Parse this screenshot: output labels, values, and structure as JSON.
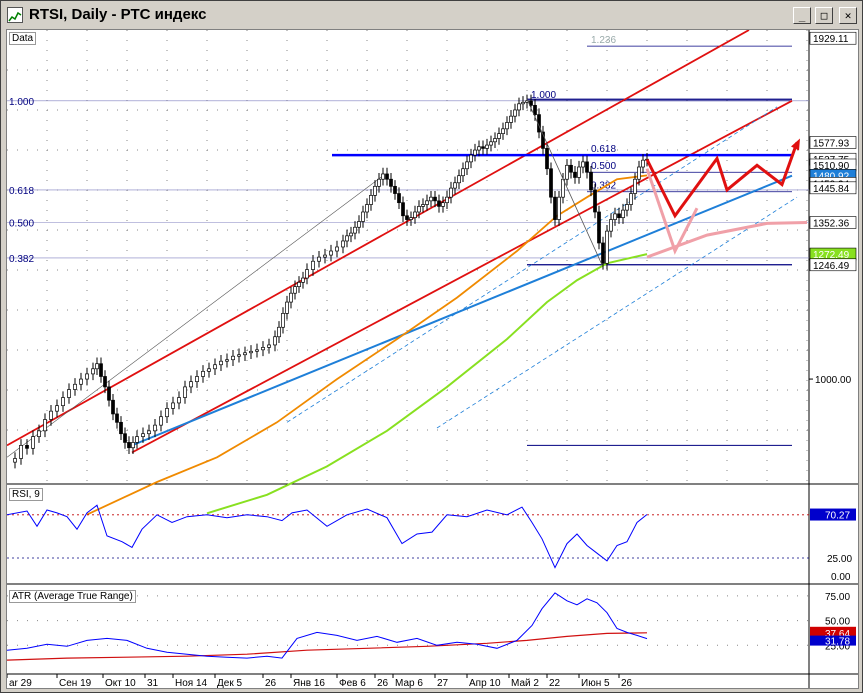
{
  "window": {
    "title": "RTSI, Daily - РТС индекс",
    "controls": {
      "minimize": "_",
      "maximize": "□",
      "close": "✕"
    }
  },
  "colors": {
    "channel": "#e01010",
    "horizontal": "#0000ff",
    "trend": "#1e7fd8",
    "ma_fast": "#f08a00",
    "ma_slow": "#88e020",
    "rsi": "#0000ff",
    "atr": "#0000ff",
    "atr_avg": "#d01010",
    "fib": "#000080",
    "forecast_red": "#e01010",
    "forecast_pink": "#f0a0a8"
  },
  "panes": {
    "main_label": "Data",
    "rsi_label": "RSI, 9",
    "atr_label": "ATR (Average True Range)"
  },
  "chart_data": [
    {
      "type": "candlestick",
      "symbol": "RTSI",
      "timeframe": "Daily",
      "scale": "log",
      "price_axis_ticks": [
        "1000.00"
      ],
      "price_badges": [
        {
          "label": "1929.11",
          "price": 1929.11
        },
        {
          "label": "1577.93",
          "price": 1577.93
        },
        {
          "label": "1527.75",
          "price": 1527.75
        },
        {
          "label": "1510.90",
          "price": 1510.9
        },
        {
          "label": "1480.92",
          "price": 1480.92
        },
        {
          "label": "1458.24",
          "price": 1458.24
        },
        {
          "label": "1445.84",
          "price": 1445.84
        },
        {
          "label": "1352.36",
          "price": 1352.36
        },
        {
          "label": "1272.49",
          "price": 1272.49
        },
        {
          "label": "1246.49",
          "price": 1246.49
        }
      ],
      "fib_left": [
        {
          "label": "1.000",
          "price": 1710
        },
        {
          "label": "0.618",
          "price": 1440
        },
        {
          "label": "0.500",
          "price": 1352.36
        },
        {
          "label": "0.382",
          "price": 1263
        }
      ],
      "fib_right": [
        {
          "label": "1.236",
          "price": 1900
        },
        {
          "label": "1.000",
          "price": 1710
        },
        {
          "label": "0.618",
          "price": 1540
        },
        {
          "label": "0.500",
          "price": 1490
        },
        {
          "label": "0.382",
          "price": 1435
        }
      ],
      "close_path": [
        [
          0,
          852
        ],
        [
          8,
          858
        ],
        [
          14,
          880
        ],
        [
          20,
          875
        ],
        [
          26,
          895
        ],
        [
          32,
          905
        ],
        [
          38,
          925
        ],
        [
          44,
          940
        ],
        [
          50,
          950
        ],
        [
          56,
          965
        ],
        [
          62,
          980
        ],
        [
          68,
          990
        ],
        [
          74,
          1000
        ],
        [
          80,
          1010
        ],
        [
          86,
          1020
        ],
        [
          90,
          1030
        ],
        [
          94,
          1005
        ],
        [
          98,
          985
        ],
        [
          102,
          960
        ],
        [
          106,
          935
        ],
        [
          110,
          920
        ],
        [
          114,
          900
        ],
        [
          118,
          885
        ],
        [
          122,
          876
        ],
        [
          126,
          885
        ],
        [
          130,
          895
        ],
        [
          136,
          900
        ],
        [
          142,
          905
        ],
        [
          148,
          915
        ],
        [
          154,
          930
        ],
        [
          160,
          945
        ],
        [
          166,
          955
        ],
        [
          172,
          965
        ],
        [
          178,
          985
        ],
        [
          184,
          995
        ],
        [
          190,
          1005
        ],
        [
          196,
          1015
        ],
        [
          202,
          1020
        ],
        [
          208,
          1028
        ],
        [
          214,
          1035
        ],
        [
          220,
          1038
        ],
        [
          226,
          1045
        ],
        [
          232,
          1048
        ],
        [
          238,
          1052
        ],
        [
          244,
          1055
        ],
        [
          250,
          1058
        ],
        [
          256,
          1063
        ],
        [
          262,
          1068
        ],
        [
          268,
          1085
        ],
        [
          272,
          1105
        ],
        [
          276,
          1135
        ],
        [
          280,
          1160
        ],
        [
          284,
          1180
        ],
        [
          288,
          1195
        ],
        [
          292,
          1205
        ],
        [
          296,
          1215
        ],
        [
          300,
          1235
        ],
        [
          306,
          1255
        ],
        [
          312,
          1265
        ],
        [
          318,
          1270
        ],
        [
          324,
          1280
        ],
        [
          330,
          1290
        ],
        [
          336,
          1305
        ],
        [
          340,
          1318
        ],
        [
          344,
          1325
        ],
        [
          348,
          1340
        ],
        [
          352,
          1355
        ],
        [
          356,
          1380
        ],
        [
          360,
          1400
        ],
        [
          364,
          1425
        ],
        [
          368,
          1450
        ],
        [
          372,
          1470
        ],
        [
          376,
          1485
        ],
        [
          380,
          1470
        ],
        [
          384,
          1450
        ],
        [
          388,
          1430
        ],
        [
          392,
          1405
        ],
        [
          396,
          1370
        ],
        [
          400,
          1360
        ],
        [
          404,
          1365
        ],
        [
          408,
          1380
        ],
        [
          412,
          1395
        ],
        [
          416,
          1400
        ],
        [
          420,
          1410
        ],
        [
          424,
          1420
        ],
        [
          428,
          1410
        ],
        [
          432,
          1395
        ],
        [
          436,
          1405
        ],
        [
          440,
          1420
        ],
        [
          444,
          1445
        ],
        [
          448,
          1460
        ],
        [
          452,
          1480
        ],
        [
          456,
          1500
        ],
        [
          460,
          1520
        ],
        [
          464,
          1540
        ],
        [
          468,
          1555
        ],
        [
          472,
          1565
        ],
        [
          476,
          1560
        ],
        [
          480,
          1570
        ],
        [
          484,
          1580
        ],
        [
          488,
          1590
        ],
        [
          492,
          1605
        ],
        [
          496,
          1620
        ],
        [
          500,
          1640
        ],
        [
          504,
          1660
        ],
        [
          508,
          1680
        ],
        [
          512,
          1700
        ],
        [
          516,
          1705
        ],
        [
          520,
          1710
        ],
        [
          524,
          1695
        ],
        [
          528,
          1665
        ],
        [
          532,
          1610
        ],
        [
          536,
          1560
        ],
        [
          540,
          1500
        ],
        [
          544,
          1420
        ],
        [
          548,
          1360
        ],
        [
          552,
          1420
        ],
        [
          556,
          1470
        ],
        [
          560,
          1510
        ],
        [
          564,
          1490
        ],
        [
          568,
          1475
        ],
        [
          572,
          1505
        ],
        [
          576,
          1520
        ],
        [
          580,
          1490
        ],
        [
          584,
          1440
        ],
        [
          588,
          1380
        ],
        [
          592,
          1300
        ],
        [
          596,
          1250
        ],
        [
          600,
          1330
        ],
        [
          604,
          1360
        ],
        [
          608,
          1375
        ],
        [
          612,
          1365
        ],
        [
          616,
          1385
        ],
        [
          620,
          1400
        ],
        [
          624,
          1430
        ],
        [
          628,
          1470
        ],
        [
          632,
          1505
        ],
        [
          636,
          1525
        ],
        [
          640,
          1527.75
        ]
      ],
      "series": [
        {
          "name": "MA fast",
          "points": [
            [
              80,
              770
            ],
            [
              150,
              820
            ],
            [
              210,
              860
            ],
            [
              270,
              920
            ],
            [
              330,
              1000
            ],
            [
              390,
              1080
            ],
            [
              450,
              1170
            ],
            [
              510,
              1280
            ],
            [
              550,
              1370
            ],
            [
              580,
              1420
            ],
            [
              610,
              1470
            ],
            [
              640,
              1480.92
            ]
          ]
        },
        {
          "name": "MA slow",
          "points": [
            [
              200,
              772
            ],
            [
              260,
              800
            ],
            [
              320,
              845
            ],
            [
              380,
              905
            ],
            [
              440,
              985
            ],
            [
              500,
              1080
            ],
            [
              540,
              1160
            ],
            [
              570,
              1210
            ],
            [
              600,
              1250
            ],
            [
              640,
              1272.49
            ]
          ]
        }
      ],
      "forecast_red": [
        [
          640,
          1527
        ],
        [
          668,
          1370
        ],
        [
          710,
          1530
        ],
        [
          720,
          1440
        ],
        [
          750,
          1510
        ],
        [
          775,
          1455
        ],
        [
          790,
          1577.93
        ]
      ],
      "forecast_pink": [
        [
          640,
          1500
        ],
        [
          668,
          1280
        ],
        [
          690,
          1390
        ]
      ],
      "forecast_pink_curve": [
        [
          640,
          1265
        ],
        [
          700,
          1320
        ],
        [
          760,
          1350
        ],
        [
          800,
          1352.36
        ]
      ],
      "x_ticks": [
        "ar 29",
        "Сен 19",
        "Окт 10",
        "31",
        "Ноя 14",
        "Дек 5",
        "26",
        "Янв 16",
        "Фев 6",
        "26",
        "Мар 6",
        "27",
        "Апр 10",
        "Май 2",
        "22",
        "Июн 5",
        "26"
      ]
    },
    {
      "type": "line",
      "name": "RSI, 9",
      "ylim": [
        0,
        100
      ],
      "levels": [
        70,
        25
      ],
      "tick_labels": [
        "25.00",
        "0.00"
      ],
      "last_label": "70.27",
      "values": [
        [
          0,
          70
        ],
        [
          20,
          74
        ],
        [
          30,
          58
        ],
        [
          40,
          75
        ],
        [
          50,
          72
        ],
        [
          60,
          68
        ],
        [
          70,
          55
        ],
        [
          80,
          72
        ],
        [
          90,
          80
        ],
        [
          100,
          48
        ],
        [
          115,
          42
        ],
        [
          125,
          36
        ],
        [
          135,
          55
        ],
        [
          150,
          70
        ],
        [
          165,
          62
        ],
        [
          180,
          68
        ],
        [
          200,
          70
        ],
        [
          220,
          67
        ],
        [
          240,
          70
        ],
        [
          260,
          68
        ],
        [
          275,
          64
        ],
        [
          285,
          72
        ],
        [
          300,
          75
        ],
        [
          320,
          58
        ],
        [
          340,
          70
        ],
        [
          360,
          76
        ],
        [
          380,
          67
        ],
        [
          395,
          40
        ],
        [
          410,
          50
        ],
        [
          425,
          52
        ],
        [
          440,
          70
        ],
        [
          460,
          68
        ],
        [
          480,
          75
        ],
        [
          500,
          70
        ],
        [
          515,
          78
        ],
        [
          525,
          62
        ],
        [
          535,
          45
        ],
        [
          548,
          15
        ],
        [
          560,
          40
        ],
        [
          570,
          50
        ],
        [
          580,
          38
        ],
        [
          590,
          30
        ],
        [
          600,
          22
        ],
        [
          610,
          38
        ],
        [
          620,
          42
        ],
        [
          630,
          62
        ],
        [
          640,
          70.27
        ]
      ]
    },
    {
      "type": "line",
      "name": "ATR (Average True Range)",
      "ylim": [
        0,
        85
      ],
      "tick_labels": [
        "75.00",
        "50.00",
        "25.00"
      ],
      "last_labels": [
        "37.64",
        "31.78"
      ],
      "series": [
        {
          "name": "ATR",
          "values": [
            [
              0,
              20
            ],
            [
              20,
              22
            ],
            [
              40,
              26
            ],
            [
              60,
              24
            ],
            [
              80,
              30
            ],
            [
              100,
              32
            ],
            [
              120,
              30
            ],
            [
              140,
              22
            ],
            [
              160,
              18
            ],
            [
              180,
              16
            ],
            [
              200,
              14
            ],
            [
              220,
              13
            ],
            [
              240,
              12
            ],
            [
              260,
              14
            ],
            [
              275,
              12
            ],
            [
              290,
              32
            ],
            [
              310,
              38
            ],
            [
              330,
              35
            ],
            [
              350,
              30
            ],
            [
              370,
              34
            ],
            [
              390,
              28
            ],
            [
              410,
              32
            ],
            [
              430,
              25
            ],
            [
              450,
              28
            ],
            [
              470,
              26
            ],
            [
              490,
              22
            ],
            [
              510,
              30
            ],
            [
              525,
              45
            ],
            [
              535,
              62
            ],
            [
              548,
              78
            ],
            [
              560,
              70
            ],
            [
              570,
              66
            ],
            [
              580,
              72
            ],
            [
              590,
              68
            ],
            [
              600,
              58
            ],
            [
              610,
              42
            ],
            [
              620,
              38
            ],
            [
              630,
              35
            ],
            [
              640,
              31.78
            ]
          ]
        },
        {
          "name": "ATR avg",
          "values": [
            [
              0,
              10
            ],
            [
              60,
              12
            ],
            [
              120,
              13
            ],
            [
              180,
              14
            ],
            [
              240,
              16
            ],
            [
              300,
              20
            ],
            [
              360,
              22
            ],
            [
              420,
              24
            ],
            [
              480,
              27
            ],
            [
              520,
              30
            ],
            [
              560,
              34
            ],
            [
              600,
              37
            ],
            [
              640,
              37.64
            ]
          ]
        }
      ]
    }
  ]
}
